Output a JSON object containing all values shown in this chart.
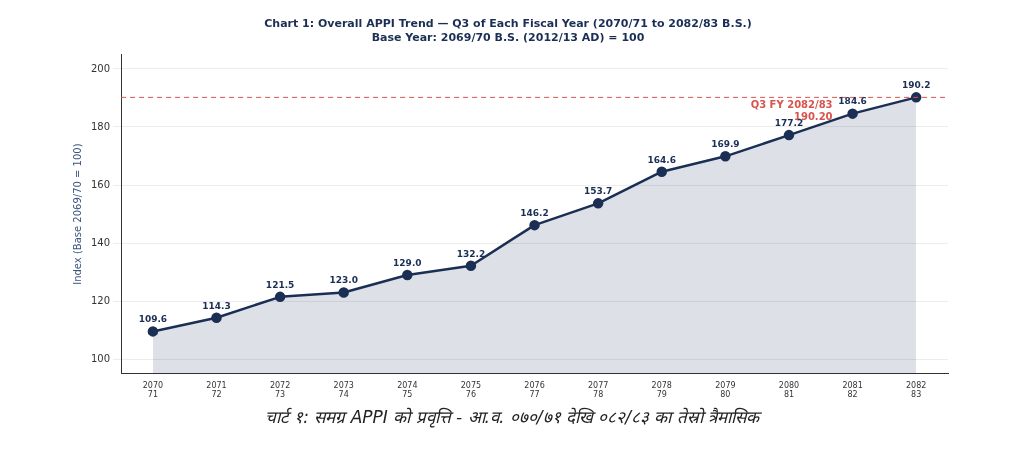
{
  "chart_data": {
    "type": "area",
    "title": [
      "Chart 1: Overall APPI Trend — Q3 of Each Fiscal Year (2070/71 to 2082/83 B.S.)",
      "Base Year: 2069/70 B.S. (2012/13 AD) = 100"
    ],
    "ylabel": "Index (Base 2069/70 = 100)",
    "categories": [
      "2070\n71",
      "2071\n72",
      "2072\n73",
      "2073\n74",
      "2074\n75",
      "2075\n76",
      "2076\n77",
      "2077\n78",
      "2078\n79",
      "2079\n80",
      "2080\n81",
      "2081\n82",
      "2082\n83"
    ],
    "series": [
      {
        "color": "#1b2f55",
        "values": [
          109.6,
          114.3,
          121.5,
          123.0,
          129.0,
          132.2,
          146.2,
          153.7,
          164.6,
          169.9,
          177.2,
          184.6,
          190.2
        ],
        "value_labels": [
          "109.6",
          "114.3",
          "121.5",
          "123.0",
          "129.0",
          "132.2",
          "146.2",
          "153.7",
          "164.6",
          "169.9",
          "177.2",
          "184.6",
          "190.2"
        ]
      }
    ],
    "ylim": [
      95,
      205
    ],
    "yticks": [
      100,
      120,
      140,
      160,
      180,
      200
    ],
    "grid": "y",
    "marker": "circle",
    "ref_lines": [
      {
        "axis": "y",
        "value": 190.2,
        "label": "Q3 FY 2082/83\n190.20",
        "color": "#d9534f",
        "line_style": "dashed"
      }
    ],
    "annotations": [
      "चार्ट १: समग्र APPI को प्रवृत्ति - आ.व. ०७०/७१ देखि ०८२/८३ का तेस्रो त्रैमासिक"
    ]
  }
}
